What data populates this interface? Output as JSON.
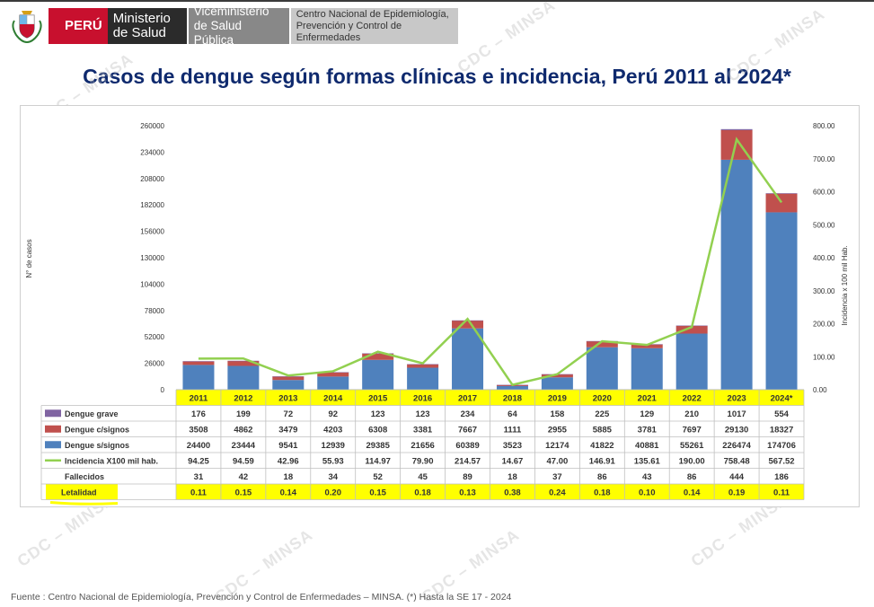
{
  "header": {
    "country": "PERÚ",
    "ministry_line1": "Ministerio",
    "ministry_line2": "de Salud",
    "vice_line1": "Viceministerio",
    "vice_line2": "de Salud Pública",
    "center_line1": "Centro Nacional de Epidemiología,",
    "center_line2": "Prevención y Control de",
    "center_line3": "Enfermedades"
  },
  "title": "Casos de dengue según formas clínicas e incidencia, Perú 2011 al 2024*",
  "watermark_text": "CDC – MINSA",
  "footer": "Fuente : Centro Nacional de Epidemiología, Prevención y Control de Enfermedades – MINSA.  (*) Hasta la SE 17 - 2024",
  "colors": {
    "grave": "#8064a2",
    "con_signos": "#c0504d",
    "sin_signos": "#4f81bd",
    "incidencia": "#92d050",
    "highlight": "#ffff00"
  },
  "chart_data": {
    "type": "bar",
    "stacked": true,
    "categories": [
      "2011",
      "2012",
      "2013",
      "2014",
      "2015",
      "2016",
      "2017",
      "2018",
      "2019",
      "2020",
      "2021",
      "2022",
      "2023",
      "2024*"
    ],
    "ylabel": "N° de casos",
    "y2label": "Incidencia x 100 mil Hab.",
    "ylim": [
      0,
      260000
    ],
    "y2lim": [
      0,
      800
    ],
    "yticks": [
      "0",
      "26000",
      "52000",
      "78000",
      "104000",
      "130000",
      "156000",
      "182000",
      "208000",
      "234000",
      "260000"
    ],
    "y2ticks": [
      "0.00",
      "100.00",
      "200.00",
      "300.00",
      "400.00",
      "500.00",
      "600.00",
      "700.00",
      "800.00"
    ],
    "series": [
      {
        "name": "Dengue grave",
        "type": "bar",
        "key": "grave",
        "values": [
          176,
          199,
          72,
          92,
          123,
          123,
          234,
          64,
          158,
          225,
          129,
          210,
          1017,
          554
        ]
      },
      {
        "name": "Dengue c/signos",
        "type": "bar",
        "key": "con_signos",
        "values": [
          3508,
          4862,
          3479,
          4203,
          6308,
          3381,
          7667,
          1111,
          2955,
          5885,
          3781,
          7697,
          29130,
          18327
        ]
      },
      {
        "name": "Dengue s/signos",
        "type": "bar",
        "key": "sin_signos",
        "values": [
          24400,
          23444,
          9541,
          12939,
          29385,
          21656,
          60389,
          3523,
          12174,
          41822,
          40881,
          55261,
          226474,
          174706
        ]
      },
      {
        "name": "Incidencia X100 mil hab.",
        "type": "line",
        "axis": "y2",
        "key": "incidencia",
        "values": [
          "94.25",
          "94.59",
          "42.96",
          "55.93",
          "114.97",
          "79.90",
          "214.57",
          "14.67",
          "47.00",
          "146.91",
          "135.61",
          "190.00",
          "758.48",
          "567.52"
        ]
      }
    ],
    "table_rows": [
      {
        "label": "Fallecidos",
        "values": [
          "31",
          "42",
          "18",
          "34",
          "52",
          "45",
          "89",
          "18",
          "37",
          "86",
          "43",
          "86",
          "444",
          "186"
        ]
      },
      {
        "label": "Letalidad",
        "values": [
          "0.11",
          "0.15",
          "0.14",
          "0.20",
          "0.15",
          "0.18",
          "0.13",
          "0.38",
          "0.24",
          "0.18",
          "0.10",
          "0.14",
          "0.19",
          "0.11"
        ]
      }
    ]
  }
}
